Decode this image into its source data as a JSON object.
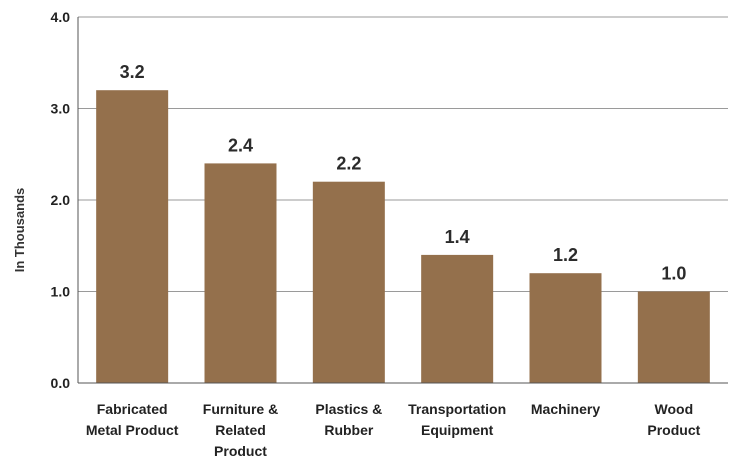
{
  "chart_data": {
    "type": "bar",
    "title": "",
    "xlabel": "",
    "ylabel": "In Thousands",
    "ylim": [
      0,
      4
    ],
    "yticks": [
      "0.0",
      "1.0",
      "2.0",
      "3.0",
      "4.0"
    ],
    "grid": true,
    "categories": [
      [
        "Fabricated",
        "Metal Product"
      ],
      [
        "Furniture &",
        "Related",
        "Product"
      ],
      [
        "Plastics &",
        "Rubber"
      ],
      [
        "Transportation",
        "Equipment"
      ],
      [
        "Machinery"
      ],
      [
        "Wood",
        "Product"
      ]
    ],
    "values": [
      3.2,
      2.4,
      2.2,
      1.4,
      1.2,
      1.0
    ],
    "data_labels": [
      "3.2",
      "2.4",
      "2.2",
      "1.4",
      "1.2",
      "1.0"
    ],
    "bar_color": "#94704c",
    "grid_color": "#9a9a9a",
    "axis_color": "#555555"
  }
}
